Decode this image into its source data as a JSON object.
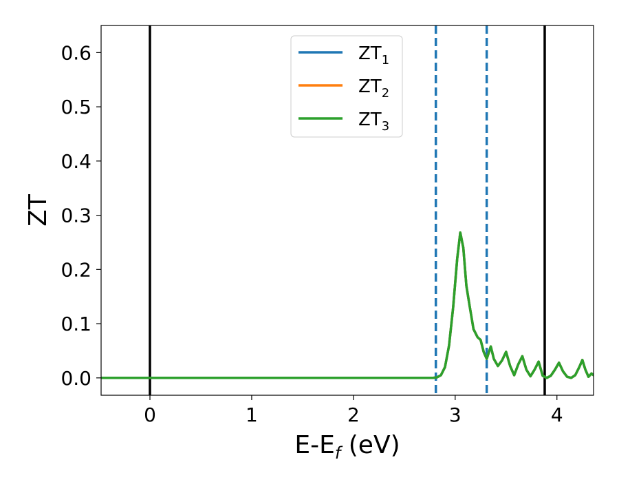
{
  "chart_data": {
    "type": "line",
    "xlabel": "E-E",
    "xlabel_sub": "f",
    "xlabel_unit": " (eV)",
    "ylabel": "ZT",
    "xlim": [
      -0.48,
      4.36
    ],
    "ylim": [
      -0.032,
      0.65
    ],
    "xticks": [
      0,
      1,
      2,
      3,
      4
    ],
    "yticks": [
      0.0,
      0.1,
      0.2,
      0.3,
      0.4,
      0.5,
      0.6
    ],
    "ytick_labels": [
      "0.0",
      "0.1",
      "0.2",
      "0.3",
      "0.4",
      "0.5",
      "0.6"
    ],
    "grid": false,
    "legend": {
      "placement": "upper-center"
    },
    "vlines": [
      {
        "x": 0.0,
        "style": "solid",
        "color": "#000000"
      },
      {
        "x": 3.88,
        "style": "solid",
        "color": "#000000"
      },
      {
        "x": 2.81,
        "style": "dashed",
        "color": "#1f77b4"
      },
      {
        "x": 3.31,
        "style": "dashed",
        "color": "#1f77b4"
      }
    ],
    "series": [
      {
        "name": "ZT",
        "subscript": "1",
        "color": "#1f77b4",
        "x": [
          -0.48,
          1.0,
          2.0,
          2.5,
          2.78,
          2.82,
          2.86,
          2.9,
          2.94,
          2.98,
          3.02,
          3.05,
          3.08,
          3.11,
          3.14,
          3.18,
          3.22,
          3.25,
          3.28,
          3.31,
          3.35,
          3.38,
          3.42,
          3.46,
          3.5,
          3.54,
          3.58,
          3.62,
          3.66,
          3.7,
          3.74,
          3.78,
          3.82,
          3.86,
          3.9,
          3.94,
          3.98,
          4.02,
          4.06,
          4.1,
          4.14,
          4.18,
          4.22,
          4.25,
          4.28,
          4.31,
          4.34,
          4.36
        ],
        "y": [
          0.0,
          0.0,
          0.0,
          0.0,
          0.0,
          0.001,
          0.005,
          0.02,
          0.06,
          0.13,
          0.22,
          0.268,
          0.24,
          0.17,
          0.135,
          0.09,
          0.075,
          0.07,
          0.048,
          0.035,
          0.058,
          0.035,
          0.022,
          0.032,
          0.048,
          0.022,
          0.005,
          0.025,
          0.04,
          0.015,
          0.003,
          0.015,
          0.03,
          0.004,
          0.0,
          0.004,
          0.015,
          0.028,
          0.012,
          0.002,
          0.0,
          0.005,
          0.02,
          0.033,
          0.015,
          0.002,
          0.008,
          0.005
        ]
      },
      {
        "name": "ZT",
        "subscript": "2",
        "color": "#ff7f0e",
        "x": [
          -0.48,
          1.0,
          2.0,
          2.5,
          2.78,
          2.82,
          2.86,
          2.9,
          2.94,
          2.98,
          3.02,
          3.05,
          3.08,
          3.11,
          3.14,
          3.18,
          3.22,
          3.25,
          3.28,
          3.31,
          3.35,
          3.38,
          3.42,
          3.46,
          3.5,
          3.54,
          3.58,
          3.62,
          3.66,
          3.7,
          3.74,
          3.78,
          3.82,
          3.86,
          3.9,
          3.94,
          3.98,
          4.02,
          4.06,
          4.1,
          4.14,
          4.18,
          4.22,
          4.25,
          4.28,
          4.31,
          4.34,
          4.36
        ],
        "y": [
          0.0,
          0.0,
          0.0,
          0.0,
          0.0,
          0.001,
          0.005,
          0.02,
          0.06,
          0.13,
          0.22,
          0.268,
          0.24,
          0.17,
          0.135,
          0.09,
          0.075,
          0.07,
          0.048,
          0.035,
          0.058,
          0.035,
          0.022,
          0.032,
          0.048,
          0.022,
          0.005,
          0.025,
          0.04,
          0.015,
          0.003,
          0.015,
          0.03,
          0.004,
          0.0,
          0.004,
          0.015,
          0.028,
          0.012,
          0.002,
          0.0,
          0.005,
          0.02,
          0.033,
          0.015,
          0.002,
          0.008,
          0.005
        ]
      },
      {
        "name": "ZT",
        "subscript": "3",
        "color": "#2ca02c",
        "x": [
          -0.48,
          1.0,
          2.0,
          2.5,
          2.78,
          2.82,
          2.86,
          2.9,
          2.94,
          2.98,
          3.02,
          3.05,
          3.08,
          3.11,
          3.14,
          3.18,
          3.22,
          3.25,
          3.28,
          3.31,
          3.35,
          3.38,
          3.42,
          3.46,
          3.5,
          3.54,
          3.58,
          3.62,
          3.66,
          3.7,
          3.74,
          3.78,
          3.82,
          3.86,
          3.9,
          3.94,
          3.98,
          4.02,
          4.06,
          4.1,
          4.14,
          4.18,
          4.22,
          4.25,
          4.28,
          4.31,
          4.34,
          4.36
        ],
        "y": [
          0.0,
          0.0,
          0.0,
          0.0,
          0.0,
          0.001,
          0.005,
          0.02,
          0.06,
          0.13,
          0.22,
          0.268,
          0.24,
          0.17,
          0.135,
          0.09,
          0.075,
          0.07,
          0.048,
          0.035,
          0.058,
          0.035,
          0.022,
          0.032,
          0.048,
          0.022,
          0.005,
          0.025,
          0.04,
          0.015,
          0.003,
          0.015,
          0.03,
          0.004,
          0.0,
          0.004,
          0.015,
          0.028,
          0.012,
          0.002,
          0.0,
          0.005,
          0.02,
          0.033,
          0.015,
          0.002,
          0.008,
          0.005
        ]
      }
    ]
  }
}
